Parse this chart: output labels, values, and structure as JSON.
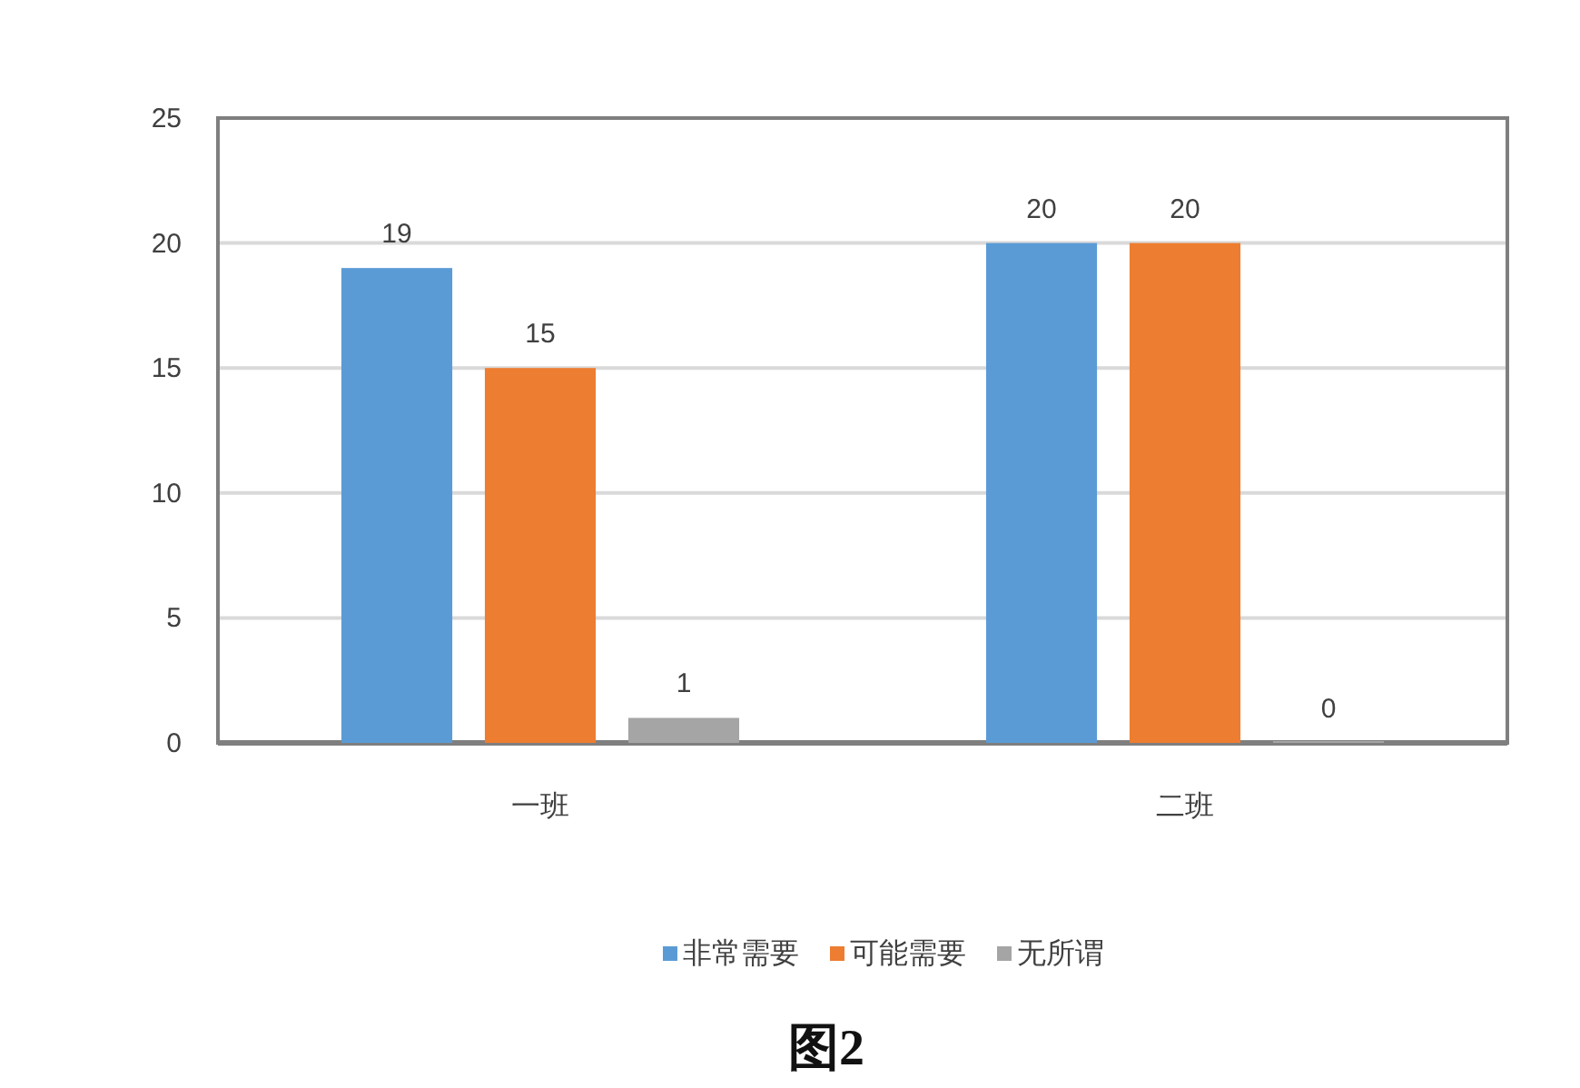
{
  "chart_data": {
    "type": "bar",
    "categories": [
      "一班",
      "二班"
    ],
    "series": [
      {
        "name": "非常需要",
        "color": "#5b9bd5",
        "values": [
          19,
          20
        ]
      },
      {
        "name": "可能需要",
        "color": "#ed7d31",
        "values": [
          15,
          20
        ]
      },
      {
        "name": "无所谓",
        "color": "#a5a5a5",
        "values": [
          1,
          0
        ]
      }
    ],
    "ylim": [
      0,
      25
    ],
    "yticks": [
      0,
      5,
      10,
      15,
      20,
      25
    ],
    "grid": "y",
    "legend": "bottom",
    "data_labels": true,
    "annotations": [
      "图2"
    ]
  }
}
